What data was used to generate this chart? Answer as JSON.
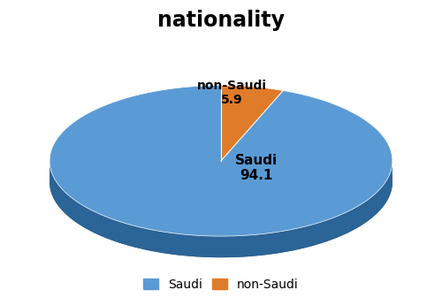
{
  "title": "nationality",
  "slices": [
    94.1,
    5.9
  ],
  "labels": [
    "Saudi",
    "non-Saudi"
  ],
  "colors_top": [
    "#5B9BD5",
    "#E07B2A"
  ],
  "colors_side": [
    "#2B6496",
    "#8B4010"
  ],
  "dark_base": "#1E4D78",
  "label_values": [
    "94.1",
    "5.9"
  ],
  "title_fontsize": 17,
  "label_fontsize": 10,
  "legend_fontsize": 10,
  "background_color": "#FFFFFF"
}
